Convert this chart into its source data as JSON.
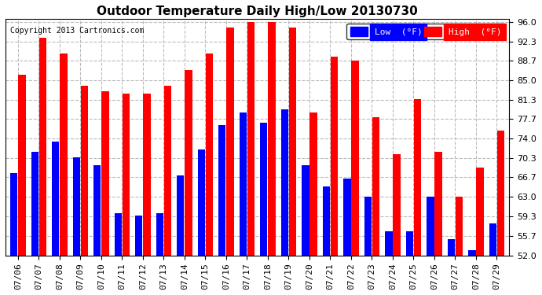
{
  "title": "Outdoor Temperature Daily High/Low 20130730",
  "copyright": "Copyright 2013 Cartronics.com",
  "legend_low": "Low  (°F)",
  "legend_high": "High  (°F)",
  "dates": [
    "07/06",
    "07/07",
    "07/08",
    "07/09",
    "07/10",
    "07/11",
    "07/12",
    "07/13",
    "07/14",
    "07/15",
    "07/16",
    "07/17",
    "07/18",
    "07/19",
    "07/20",
    "07/21",
    "07/22",
    "07/23",
    "07/24",
    "07/25",
    "07/26",
    "07/27",
    "07/28",
    "07/29"
  ],
  "highs": [
    86.0,
    93.0,
    90.0,
    84.0,
    83.0,
    82.5,
    82.5,
    84.0,
    87.0,
    90.0,
    95.0,
    96.0,
    96.0,
    95.0,
    79.0,
    89.5,
    88.7,
    78.0,
    71.0,
    81.5,
    71.5,
    63.0,
    68.5,
    75.5
  ],
  "lows": [
    67.5,
    71.5,
    73.5,
    70.5,
    69.0,
    60.0,
    59.5,
    60.0,
    67.0,
    72.0,
    76.5,
    79.0,
    77.0,
    79.5,
    69.0,
    65.0,
    66.5,
    63.0,
    56.5,
    56.5,
    63.0,
    55.0,
    53.0,
    58.0
  ],
  "ylim": [
    52.0,
    96.0
  ],
  "yticks": [
    52.0,
    55.7,
    59.3,
    63.0,
    66.7,
    70.3,
    74.0,
    77.7,
    81.3,
    85.0,
    88.7,
    92.3,
    96.0
  ],
  "bar_color_low": "#0000ff",
  "bar_color_high": "#ff0000",
  "bg_color": "#ffffff",
  "grid_color": "#bbbbbb",
  "title_fontsize": 11,
  "tick_fontsize": 8.0
}
